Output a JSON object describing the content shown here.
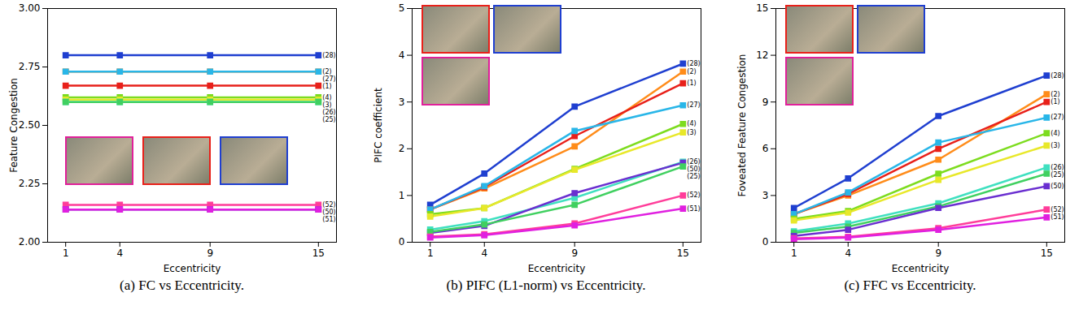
{
  "chart_data": [
    {
      "type": "line",
      "title": "(a) FC vs Eccentricity.",
      "x_label": "Eccentricity",
      "y_label": "Feature Congestion",
      "x": [
        1,
        4,
        9,
        15
      ],
      "xlim": [
        0,
        16
      ],
      "xticks": [
        1,
        4,
        9,
        15
      ],
      "ylim": [
        2,
        3
      ],
      "yticks": [
        {
          "value": 2,
          "label": "2.00"
        },
        {
          "value": 2.25,
          "label": "2.25"
        },
        {
          "value": 2.5,
          "label": "2.50"
        },
        {
          "value": 2.75,
          "label": "2.75"
        },
        {
          "value": 3,
          "label": "3.00"
        }
      ],
      "marker": "square",
      "series": [
        {
          "name": "(28)",
          "color": "#1f3fd0",
          "values": [
            2.8,
            2.8,
            2.8,
            2.8
          ]
        },
        {
          "name": "(2)",
          "color": "#ff8c1a",
          "values": [
            2.73,
            2.73,
            2.73,
            2.73
          ]
        },
        {
          "name": "(27)",
          "color": "#29b6e8",
          "values": [
            2.73,
            2.73,
            2.73,
            2.73
          ]
        },
        {
          "name": "(1)",
          "color": "#e8201a",
          "values": [
            2.67,
            2.67,
            2.67,
            2.67
          ]
        },
        {
          "name": "(4)",
          "color": "#7ddc1f",
          "values": [
            2.62,
            2.62,
            2.62,
            2.62
          ]
        },
        {
          "name": "(3)",
          "color": "#e8e82a",
          "values": [
            2.61,
            2.61,
            2.61,
            2.61
          ]
        },
        {
          "name": "(26)",
          "color": "#40e0c0",
          "values": [
            2.6,
            2.6,
            2.6,
            2.6
          ]
        },
        {
          "name": "(25)",
          "color": "#40d060",
          "values": [
            2.6,
            2.6,
            2.6,
            2.6
          ]
        },
        {
          "name": "(52)",
          "color": "#ff3d9a",
          "values": [
            2.16,
            2.16,
            2.16,
            2.16
          ]
        },
        {
          "name": "(50)",
          "color": "#6a2fd0",
          "values": [
            2.14,
            2.14,
            2.14,
            2.14
          ]
        },
        {
          "name": "(51)",
          "color": "#e020e0",
          "values": [
            2.14,
            2.14,
            2.14,
            2.14
          ]
        }
      ]
    },
    {
      "type": "line",
      "title": "(b) PIFC (L1-norm) vs Eccentricity.",
      "x_label": "Eccentricity",
      "y_label": "PIFC coefficient",
      "x": [
        1,
        4,
        9,
        15
      ],
      "xlim": [
        0,
        16
      ],
      "xticks": [
        1,
        4,
        9,
        15
      ],
      "ylim": [
        0,
        5
      ],
      "yticks": [
        0,
        1,
        2,
        3,
        4,
        5
      ],
      "marker": "square",
      "series": [
        {
          "name": "(28)",
          "color": "#1f3fd0",
          "values": [
            0.8,
            1.47,
            2.9,
            3.82
          ]
        },
        {
          "name": "(2)",
          "color": "#ff8c1a",
          "values": [
            0.7,
            1.15,
            2.05,
            3.65
          ]
        },
        {
          "name": "(1)",
          "color": "#e8201a",
          "values": [
            0.7,
            1.18,
            2.27,
            3.4
          ]
        },
        {
          "name": "(27)",
          "color": "#29b6e8",
          "values": [
            0.7,
            1.2,
            2.38,
            2.93
          ]
        },
        {
          "name": "(4)",
          "color": "#7ddc1f",
          "values": [
            0.6,
            0.73,
            1.57,
            2.53
          ]
        },
        {
          "name": "(3)",
          "color": "#e8e82a",
          "values": [
            0.55,
            0.73,
            1.55,
            2.35
          ]
        },
        {
          "name": "(26)",
          "color": "#40e0c0",
          "values": [
            0.27,
            0.45,
            0.95,
            1.72
          ]
        },
        {
          "name": "(50)",
          "color": "#6a2fd0",
          "values": [
            0.2,
            0.35,
            1.05,
            1.7
          ]
        },
        {
          "name": "(25)",
          "color": "#40d060",
          "values": [
            0.22,
            0.38,
            0.8,
            1.62
          ]
        },
        {
          "name": "(52)",
          "color": "#ff3d9a",
          "values": [
            0.12,
            0.17,
            0.4,
            1.0
          ]
        },
        {
          "name": "(51)",
          "color": "#e020e0",
          "values": [
            0.1,
            0.15,
            0.36,
            0.72
          ]
        }
      ]
    },
    {
      "type": "line",
      "title": "(c) FFC vs Eccentricity.",
      "x_label": "Eccentricity",
      "y_label": "Foveated Feature Congestion",
      "x": [
        1,
        4,
        9,
        15
      ],
      "xlim": [
        0,
        16
      ],
      "xticks": [
        1,
        4,
        9,
        15
      ],
      "ylim": [
        0,
        15
      ],
      "yticks": [
        0,
        3,
        6,
        9,
        12,
        15
      ],
      "marker": "square",
      "series": [
        {
          "name": "(28)",
          "color": "#1f3fd0",
          "values": [
            2.2,
            4.1,
            8.1,
            10.7
          ]
        },
        {
          "name": "(2)",
          "color": "#ff8c1a",
          "values": [
            1.8,
            3.0,
            5.3,
            9.5
          ]
        },
        {
          "name": "(1)",
          "color": "#e8201a",
          "values": [
            1.8,
            3.1,
            6.0,
            9.0
          ]
        },
        {
          "name": "(27)",
          "color": "#29b6e8",
          "values": [
            1.8,
            3.2,
            6.4,
            8.0
          ]
        },
        {
          "name": "(4)",
          "color": "#7ddc1f",
          "values": [
            1.5,
            2.0,
            4.4,
            7.0
          ]
        },
        {
          "name": "(3)",
          "color": "#e8e82a",
          "values": [
            1.4,
            1.9,
            4.0,
            6.2
          ]
        },
        {
          "name": "(26)",
          "color": "#40e0c0",
          "values": [
            0.7,
            1.2,
            2.5,
            4.8
          ]
        },
        {
          "name": "(25)",
          "color": "#40d060",
          "values": [
            0.6,
            1.0,
            2.3,
            4.4
          ]
        },
        {
          "name": "(50)",
          "color": "#6a2fd0",
          "values": [
            0.4,
            0.8,
            2.2,
            3.6
          ]
        },
        {
          "name": "(52)",
          "color": "#ff3d9a",
          "values": [
            0.25,
            0.35,
            0.9,
            2.1
          ]
        },
        {
          "name": "(51)",
          "color": "#e020e0",
          "values": [
            0.2,
            0.3,
            0.8,
            1.6
          ]
        }
      ]
    }
  ]
}
